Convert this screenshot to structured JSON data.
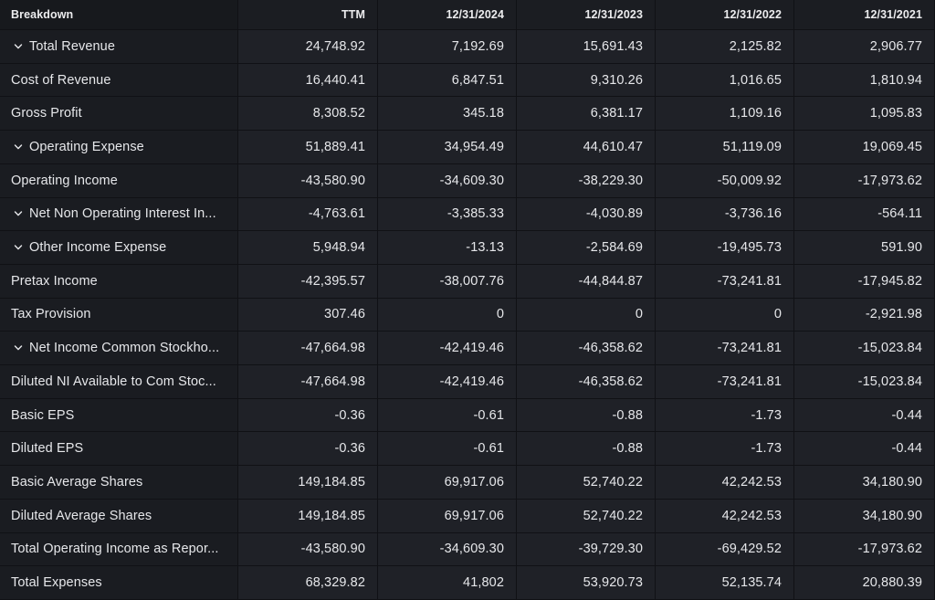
{
  "header": {
    "label": "Breakdown",
    "columns": [
      "TTM",
      "12/31/2024",
      "12/31/2023",
      "12/31/2022",
      "12/31/2021"
    ]
  },
  "rows": [
    {
      "label": "Total Revenue",
      "expandable": true,
      "values": [
        "24,748.92",
        "7,192.69",
        "15,691.43",
        "2,125.82",
        "2,906.77"
      ]
    },
    {
      "label": "Cost of Revenue",
      "expandable": false,
      "values": [
        "16,440.41",
        "6,847.51",
        "9,310.26",
        "1,016.65",
        "1,810.94"
      ]
    },
    {
      "label": "Gross Profit",
      "expandable": false,
      "values": [
        "8,308.52",
        "345.18",
        "6,381.17",
        "1,109.16",
        "1,095.83"
      ]
    },
    {
      "label": "Operating Expense",
      "expandable": true,
      "values": [
        "51,889.41",
        "34,954.49",
        "44,610.47",
        "51,119.09",
        "19,069.45"
      ]
    },
    {
      "label": "Operating Income",
      "expandable": false,
      "values": [
        "-43,580.90",
        "-34,609.30",
        "-38,229.30",
        "-50,009.92",
        "-17,973.62"
      ]
    },
    {
      "label": "Net Non Operating Interest In...",
      "expandable": true,
      "values": [
        "-4,763.61",
        "-3,385.33",
        "-4,030.89",
        "-3,736.16",
        "-564.11"
      ]
    },
    {
      "label": "Other Income Expense",
      "expandable": true,
      "values": [
        "5,948.94",
        "-13.13",
        "-2,584.69",
        "-19,495.73",
        "591.90"
      ]
    },
    {
      "label": "Pretax Income",
      "expandable": false,
      "values": [
        "-42,395.57",
        "-38,007.76",
        "-44,844.87",
        "-73,241.81",
        "-17,945.82"
      ]
    },
    {
      "label": "Tax Provision",
      "expandable": false,
      "values": [
        "307.46",
        "0",
        "0",
        "0",
        "-2,921.98"
      ]
    },
    {
      "label": "Net Income Common Stockho...",
      "expandable": true,
      "values": [
        "-47,664.98",
        "-42,419.46",
        "-46,358.62",
        "-73,241.81",
        "-15,023.84"
      ]
    },
    {
      "label": "Diluted NI Available to Com Stoc...",
      "expandable": false,
      "values": [
        "-47,664.98",
        "-42,419.46",
        "-46,358.62",
        "-73,241.81",
        "-15,023.84"
      ]
    },
    {
      "label": "Basic EPS",
      "expandable": false,
      "values": [
        "-0.36",
        "-0.61",
        "-0.88",
        "-1.73",
        "-0.44"
      ]
    },
    {
      "label": "Diluted EPS",
      "expandable": false,
      "values": [
        "-0.36",
        "-0.61",
        "-0.88",
        "-1.73",
        "-0.44"
      ]
    },
    {
      "label": "Basic Average Shares",
      "expandable": false,
      "values": [
        "149,184.85",
        "69,917.06",
        "52,740.22",
        "42,242.53",
        "34,180.90"
      ]
    },
    {
      "label": "Diluted Average Shares",
      "expandable": false,
      "values": [
        "149,184.85",
        "69,917.06",
        "52,740.22",
        "42,242.53",
        "34,180.90"
      ]
    },
    {
      "label": "Total Operating Income as Repor...",
      "expandable": false,
      "values": [
        "-43,580.90",
        "-34,609.30",
        "-39,729.30",
        "-69,429.52",
        "-17,973.62"
      ]
    },
    {
      "label": "Total Expenses",
      "expandable": false,
      "values": [
        "68,329.82",
        "41,802",
        "53,920.73",
        "52,135.74",
        "20,880.39"
      ]
    }
  ],
  "colors": {
    "background": "#101115",
    "cell": "#1f2127",
    "label_cell": "#1a1c21",
    "text": "#e6e7ea"
  }
}
